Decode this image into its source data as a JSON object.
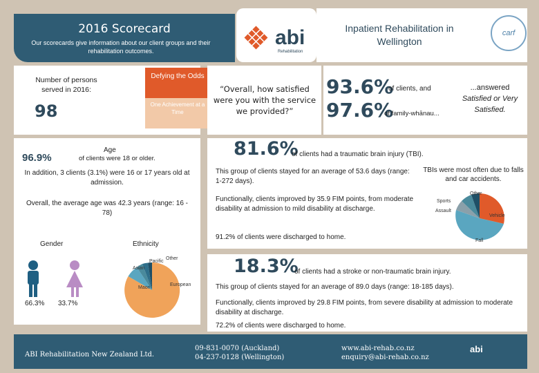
{
  "header": {
    "title": "2016 Scorecard",
    "subtitle": "Our scorecards give information about our client groups and their rehabilitation outcomes.",
    "logo_text": "abi",
    "logo_sub": "Rehabilitation",
    "location": "Inpatient Rehabilitation in Wellington",
    "accreditation_badge": "carf"
  },
  "persons": {
    "label": "Number of persons served in 2016:",
    "value": "98",
    "defying": "Defying the Odds",
    "achievement": "One Achievement at a Time"
  },
  "quote": {
    "text": "“Overall, how satisfied were you with the service we provided?”"
  },
  "satisfaction": {
    "clients_pct": "93.6%",
    "clients_text": "of clients, and",
    "family_pct": "97.6%",
    "family_text": "of family-whānau...",
    "answer_prefix": "...answered",
    "answer_italic": "Satisfied or Very Satisfied."
  },
  "age": {
    "title": "Age",
    "adult_pct": "96.9%",
    "adult_text": "of clients were 18 or older.",
    "youth_text": "In addition, 3 clients (3.1%) were 16 or 17 years old at admission.",
    "average_text": "Overall, the average age was 42.3 years (range: 16 - 78)"
  },
  "gender": {
    "label": "Gender",
    "male_pct": "66.3%",
    "female_pct": "33.7%",
    "male_color": "#1f5f82",
    "female_color": "#b98cc4"
  },
  "ethnicity": {
    "label": "Ethnicity",
    "slice_labels": [
      "Pacific",
      "Other",
      "Asian",
      "Maori",
      "European"
    ]
  },
  "tbi": {
    "pct": "81.6%",
    "title": "of clients had a traumatic brain injury (TBI).",
    "stay": "This group of clients stayed for an average of 53.6 days (range: 1-272 days).",
    "fim": "Functionally, clients improved by 35.9 FIM points, from moderate disability at admission to mild disability at discharge.",
    "home": "91.2% of clients were discharged to home.",
    "cause_note": "TBIs were most often due to falls and car accidents.",
    "cause_labels": [
      "Other",
      "Sports",
      "Assault",
      "Vehicle",
      "Fall"
    ]
  },
  "stroke": {
    "pct": "18.3%",
    "title": "of clients had a stroke or non-traumatic brain injury.",
    "stay": "This group of clients stayed for an average of 89.0 days (range: 18-185 days).",
    "fim": "Functionally, clients improved by 29.8 FIM points, from severe disability at admission to moderate disability at discharge.",
    "home": "72.2% of clients were discharged to home."
  },
  "footer": {
    "org": "ABI Rehabilitation New Zealand Ltd.",
    "phone_auckland": "09-831-0070 (Auckland)",
    "phone_wellington": "04-237-0128 (Wellington)",
    "website": "www.abi-rehab.co.nz",
    "email": "enquiry@abi-rehab.co.nz",
    "logo_text": "abi"
  }
}
